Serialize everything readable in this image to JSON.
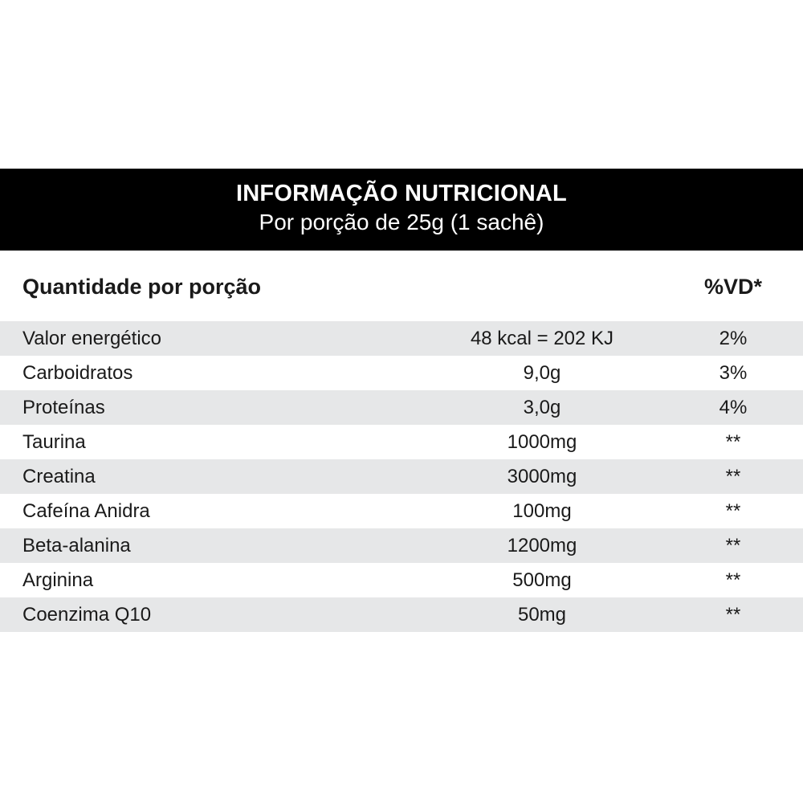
{
  "label": {
    "title": "INFORMAÇÃO NUTRICIONAL",
    "subtitle": "Por porção de 25g (1 sachê)",
    "column_left": "Quantidade por porção",
    "column_right": "%VD*",
    "rows": [
      {
        "name": "Valor energético",
        "amount": "48 kcal = 202 KJ",
        "vd": "2%"
      },
      {
        "name": "Carboidratos",
        "amount": "9,0g",
        "vd": "3%"
      },
      {
        "name": "Proteínas",
        "amount": "3,0g",
        "vd": "4%"
      },
      {
        "name": "Taurina",
        "amount": "1000mg",
        "vd": "**"
      },
      {
        "name": "Creatina",
        "amount": "3000mg",
        "vd": "**"
      },
      {
        "name": "Cafeína Anidra",
        "amount": "100mg",
        "vd": "**"
      },
      {
        "name": "Beta-alanina",
        "amount": "1200mg",
        "vd": "**"
      },
      {
        "name": "Arginina",
        "amount": "500mg",
        "vd": "**"
      },
      {
        "name": "Coenzima Q10",
        "amount": "50mg",
        "vd": "**"
      }
    ]
  },
  "colors": {
    "header_bg": "#000000",
    "header_text": "#ffffff",
    "row_shade": "#e6e7e8",
    "text": "#1a1a1a"
  }
}
